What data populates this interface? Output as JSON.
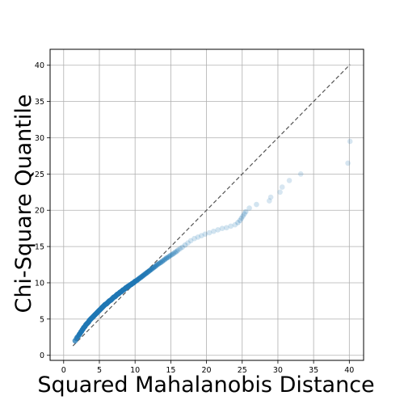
{
  "chart_data": {
    "type": "scatter",
    "title": "",
    "xlabel": "Squared Mahalanobis Distance",
    "ylabel": "Chi-Square Quantile",
    "xlim": [
      -1.9,
      42
    ],
    "ylim": [
      -0.7,
      42.2
    ],
    "xticks": [
      0,
      5,
      10,
      15,
      20,
      25,
      30,
      35,
      40
    ],
    "yticks": [
      0,
      5,
      10,
      15,
      20,
      25,
      30,
      35,
      40
    ],
    "xtick_labels": [
      "0",
      "5",
      "10",
      "15",
      "20",
      "25",
      "30",
      "35",
      "40"
    ],
    "ytick_labels": [
      "0",
      "5",
      "10",
      "15",
      "20",
      "25",
      "30",
      "35",
      "40"
    ],
    "grid": true,
    "point_color": "#1f77b4",
    "reference_line": {
      "from": [
        1.3,
        1.3
      ],
      "to": [
        40.1,
        40.1
      ],
      "style": "dashed",
      "color": "#555555"
    },
    "points": {
      "x": [
        1.6,
        1.8,
        1.9,
        2.1,
        2.2,
        2.3,
        2.4,
        2.5,
        2.6,
        2.7,
        2.8,
        2.9,
        3.0,
        3.1,
        3.2,
        3.3,
        3.4,
        3.5,
        3.6,
        3.7,
        3.8,
        3.9,
        4.0,
        4.1,
        4.2,
        4.3,
        4.4,
        4.5,
        4.6,
        4.7,
        4.8,
        4.9,
        5.0,
        5.1,
        5.2,
        5.3,
        5.4,
        5.5,
        5.6,
        5.7,
        5.8,
        5.9,
        6.0,
        6.1,
        6.2,
        6.3,
        6.4,
        6.5,
        6.6,
        6.7,
        6.8,
        6.9,
        7.0,
        7.1,
        7.2,
        7.3,
        7.4,
        7.5,
        7.6,
        7.7,
        7.8,
        7.9,
        8.0,
        8.1,
        8.2,
        8.3,
        8.4,
        8.5,
        8.6,
        8.7,
        8.8,
        8.9,
        9.0,
        9.1,
        9.2,
        9.3,
        9.4,
        9.5,
        9.6,
        9.7,
        9.8,
        9.9,
        10.0,
        10.2,
        10.4,
        10.6,
        10.8,
        11.0,
        11.2,
        11.4,
        11.6,
        11.8,
        12.0,
        12.2,
        12.4,
        12.6,
        12.8,
        13.0,
        13.2,
        13.4,
        13.6,
        13.8,
        14.0,
        14.2,
        14.4,
        14.6,
        14.8,
        15.0,
        15.2,
        15.4,
        15.6,
        15.8,
        16.0,
        16.3,
        16.6,
        17.0,
        17.4,
        17.8,
        18.3,
        18.8,
        19.3,
        19.8,
        20.4,
        21.0,
        21.6,
        22.2,
        22.8,
        23.4,
        24.0,
        24.4,
        24.7,
        24.9,
        25.1,
        25.3,
        25.5,
        26.0,
        27.0,
        28.8,
        29.0,
        30.3,
        30.6,
        31.6,
        33.2,
        39.8,
        40.1
      ],
      "y": [
        2.0,
        2.3,
        2.5,
        2.7,
        2.9,
        3.0,
        3.2,
        3.3,
        3.5,
        3.6,
        3.8,
        3.9,
        4.0,
        4.2,
        4.3,
        4.4,
        4.5,
        4.6,
        4.8,
        4.9,
        5.0,
        5.1,
        5.2,
        5.3,
        5.4,
        5.5,
        5.6,
        5.7,
        5.8,
        5.9,
        6.0,
        6.1,
        6.2,
        6.3,
        6.4,
        6.5,
        6.6,
        6.7,
        6.8,
        6.9,
        7.0,
        7.05,
        7.1,
        7.2,
        7.3,
        7.4,
        7.5,
        7.55,
        7.6,
        7.7,
        7.8,
        7.9,
        8.0,
        8.05,
        8.1,
        8.2,
        8.3,
        8.4,
        8.45,
        8.5,
        8.6,
        8.7,
        8.75,
        8.8,
        8.9,
        9.0,
        9.05,
        9.1,
        9.2,
        9.3,
        9.35,
        9.4,
        9.5,
        9.55,
        9.6,
        9.7,
        9.75,
        9.8,
        9.9,
        9.95,
        10.0,
        10.1,
        10.2,
        10.3,
        10.45,
        10.6,
        10.75,
        10.9,
        11.05,
        11.2,
        11.35,
        11.5,
        11.65,
        11.8,
        11.95,
        12.1,
        12.25,
        12.4,
        12.55,
        12.7,
        12.8,
        12.95,
        13.1,
        13.25,
        13.4,
        13.5,
        13.65,
        13.8,
        13.9,
        14.05,
        14.2,
        14.3,
        14.5,
        14.7,
        14.9,
        15.2,
        15.5,
        15.8,
        16.1,
        16.3,
        16.5,
        16.7,
        16.9,
        17.1,
        17.3,
        17.5,
        17.6,
        17.8,
        18.0,
        18.3,
        18.6,
        18.9,
        19.2,
        19.5,
        19.8,
        20.3,
        20.8,
        21.3,
        21.8,
        22.5,
        23.2,
        24.1,
        25.0,
        26.5,
        29.5
      ],
      "alpha": [
        0.75,
        0.75,
        0.8,
        0.8,
        0.85,
        0.85,
        0.85,
        0.9,
        0.9,
        0.9,
        0.9,
        0.9,
        0.9,
        0.9,
        0.9,
        0.9,
        0.9,
        0.9,
        0.9,
        0.9,
        0.9,
        0.9,
        0.9,
        0.9,
        0.9,
        0.9,
        0.9,
        0.9,
        0.9,
        0.9,
        0.9,
        0.9,
        0.9,
        0.9,
        0.9,
        0.9,
        0.9,
        0.9,
        0.9,
        0.9,
        0.9,
        0.9,
        0.9,
        0.9,
        0.9,
        0.9,
        0.9,
        0.9,
        0.9,
        0.9,
        0.9,
        0.9,
        0.9,
        0.9,
        0.9,
        0.9,
        0.9,
        0.9,
        0.9,
        0.9,
        0.9,
        0.9,
        0.9,
        0.9,
        0.9,
        0.9,
        0.9,
        0.9,
        0.9,
        0.9,
        0.9,
        0.9,
        0.9,
        0.9,
        0.9,
        0.9,
        0.9,
        0.9,
        0.9,
        0.9,
        0.9,
        0.9,
        0.9,
        0.85,
        0.85,
        0.85,
        0.8,
        0.8,
        0.8,
        0.75,
        0.75,
        0.7,
        0.7,
        0.7,
        0.65,
        0.6,
        0.6,
        0.55,
        0.55,
        0.5,
        0.5,
        0.5,
        0.45,
        0.45,
        0.45,
        0.4,
        0.4,
        0.35,
        0.35,
        0.35,
        0.3,
        0.3,
        0.3,
        0.25,
        0.25,
        0.25,
        0.2,
        0.2,
        0.2,
        0.2,
        0.2,
        0.2,
        0.2,
        0.2,
        0.2,
        0.2,
        0.2,
        0.2,
        0.2,
        0.25,
        0.25,
        0.25,
        0.25,
        0.25,
        0.25,
        0.2,
        0.2,
        0.18,
        0.18,
        0.18,
        0.18,
        0.18,
        0.18,
        0.18,
        0.18
      ]
    }
  }
}
